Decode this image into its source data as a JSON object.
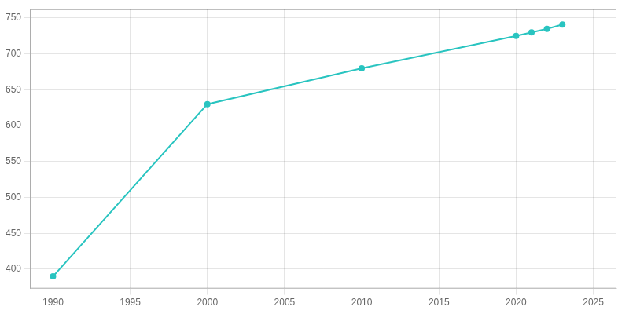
{
  "chart_data": {
    "type": "line",
    "x": [
      1990,
      2000,
      2010,
      2020,
      2021,
      2022,
      2023
    ],
    "values": [
      390,
      630,
      680,
      725,
      730,
      735,
      741
    ],
    "color": "#29c4c0",
    "marker": "o",
    "xlim": [
      1988.5,
      2026.5
    ],
    "ylim": [
      373,
      762
    ],
    "xticks": [
      1990,
      1995,
      2000,
      2005,
      2010,
      2015,
      2020,
      2025
    ],
    "yticks": [
      400,
      450,
      500,
      550,
      600,
      650,
      700,
      750
    ],
    "grid": true
  }
}
